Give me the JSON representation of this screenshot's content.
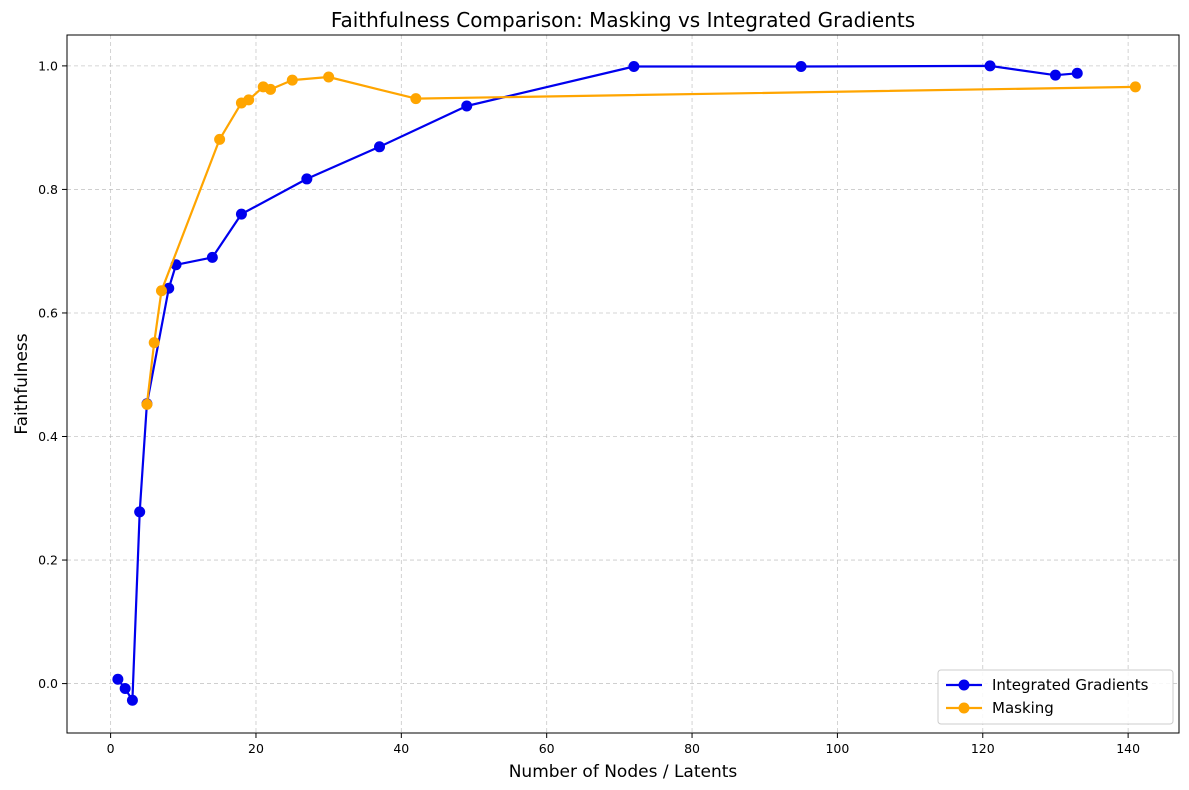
{
  "chart_data": {
    "type": "line",
    "title": "Faithfulness Comparison: Masking vs Integrated Gradients",
    "xlabel": "Number of Nodes / Latents",
    "ylabel": "Faithfulness",
    "xlim": [
      -6,
      147
    ],
    "ylim": [
      -0.08,
      1.05
    ],
    "xticks": [
      0,
      20,
      40,
      60,
      80,
      100,
      120,
      140
    ],
    "yticks": [
      0.0,
      0.2,
      0.4,
      0.6,
      0.8,
      1.0
    ],
    "xtick_labels": [
      "0",
      "20",
      "40",
      "60",
      "80",
      "100",
      "120",
      "140"
    ],
    "ytick_labels": [
      "0.0",
      "0.2",
      "0.4",
      "0.6",
      "0.8",
      "1.0"
    ],
    "grid": true,
    "legend_position": "bottom-right",
    "series": [
      {
        "name": "Integrated Gradients",
        "color": "#0000ee",
        "x": [
          1,
          2,
          3,
          4,
          5,
          8,
          9,
          14,
          18,
          27,
          37,
          49,
          72,
          95,
          121,
          130,
          133
        ],
        "y": [
          0.007,
          -0.008,
          -0.027,
          0.278,
          0.453,
          0.64,
          0.678,
          0.69,
          0.76,
          0.817,
          0.869,
          0.935,
          0.999,
          0.999,
          1.0,
          0.985,
          0.988
        ]
      },
      {
        "name": "Masking",
        "color": "#ffa500",
        "x": [
          5,
          6,
          7,
          15,
          18,
          19,
          21,
          22,
          25,
          30,
          42,
          141
        ],
        "y": [
          0.452,
          0.552,
          0.636,
          0.881,
          0.94,
          0.945,
          0.966,
          0.962,
          0.977,
          0.982,
          0.947,
          0.966
        ]
      }
    ]
  }
}
